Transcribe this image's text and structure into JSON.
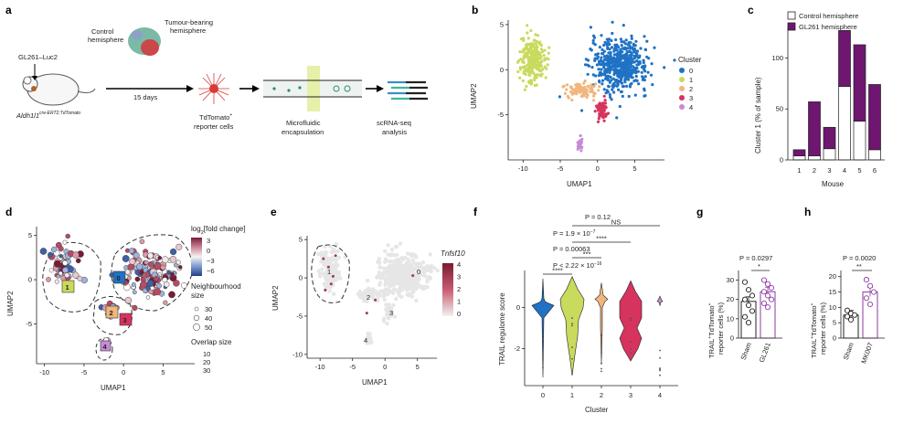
{
  "panel_letters": [
    "a",
    "b",
    "c",
    "d",
    "e",
    "f",
    "g",
    "h"
  ],
  "schematic": {
    "mouse_label": "GL261–Luc2",
    "control_label_1": "Control",
    "control_label_2": "hemisphere",
    "tumour_label_1": "Tumour-bearing",
    "tumour_label_2": "hemisphere",
    "duration": "15 days",
    "genotype": "Aldh1l1",
    "genotype_sup": "cre-ERT2;TdTomato",
    "step1_1": "TdTomato",
    "step1_sup": "+",
    "step1_2": "reporter cells",
    "step2_1": "Microfluidic",
    "step2_2": "encapsulation",
    "step3_1": "scRNA-seq",
    "step3_2": "analysis"
  },
  "chart_data": [
    {
      "panel": "b",
      "type": "scatter",
      "title": "",
      "xlabel": "UMAP1",
      "ylabel": "UMAP2",
      "xlim": [
        -12,
        9
      ],
      "ylim": [
        -10,
        5.5
      ],
      "xticks": [
        "-10",
        "-5",
        "0",
        "5"
      ],
      "yticks": [
        "5",
        "0",
        "-5"
      ],
      "legend_title": "Cluster",
      "series": [
        {
          "name": "0",
          "color": "#1f72c4",
          "center": [
            3,
            0.5
          ],
          "spread": [
            4.2,
            3.2
          ],
          "n": 520
        },
        {
          "name": "1",
          "color": "#c9da5c",
          "center": [
            -8.7,
            1.2
          ],
          "spread": [
            1.8,
            2.9
          ],
          "n": 240
        },
        {
          "name": "2",
          "color": "#f0b67c",
          "center": [
            -2.2,
            -2.3
          ],
          "spread": [
            2.4,
            0.9
          ],
          "n": 90
        },
        {
          "name": "3",
          "color": "#d7335f",
          "center": [
            0.6,
            -4.5
          ],
          "spread": [
            0.9,
            1.2
          ],
          "n": 60
        },
        {
          "name": "4",
          "color": "#c78bd6",
          "center": [
            -2.4,
            -8.3
          ],
          "spread": [
            0.4,
            0.8
          ],
          "n": 30
        }
      ]
    },
    {
      "panel": "c",
      "type": "bar",
      "title": "",
      "xlabel": "Mouse",
      "ylabel": "Cluster 1 (% of sample)",
      "categories": [
        "1",
        "2",
        "3",
        "4",
        "5",
        "6"
      ],
      "ylim": [
        0,
        130
      ],
      "yticks": [
        "0",
        "50",
        "100"
      ],
      "series": [
        {
          "name": "Control hemisphere",
          "color": "#ffffff",
          "values": [
            4,
            4,
            11,
            72,
            38,
            10
          ]
        },
        {
          "name": "GL261 hemisphere",
          "color": "#6e1670",
          "values": [
            6,
            53,
            21,
            55,
            75,
            64
          ]
        }
      ]
    },
    {
      "panel": "d",
      "type": "scatter",
      "title": "",
      "xlabel": "UMAP1",
      "ylabel": "UMAP2",
      "xlim": [
        -11,
        9
      ],
      "ylim": [
        -9.5,
        6
      ],
      "xticks": [
        "-10",
        "-5",
        "0",
        "5"
      ],
      "yticks": [
        "5",
        "0",
        "-5"
      ],
      "color_legend_title": "log",
      "color_legend_sub": "2",
      "color_legend_rest": "[fold change]",
      "color_ticks": [
        "3",
        "0",
        "−3",
        "−6"
      ],
      "size_title_1": "Neighbourhood",
      "size_title_2": "size",
      "size_values": [
        "30",
        "40",
        "50"
      ],
      "overlap_title": "Overlap size",
      "overlap_values": [
        "10",
        "20",
        "30"
      ],
      "cluster_labels": [
        "0",
        "1",
        "2",
        "3",
        "4"
      ]
    },
    {
      "panel": "e",
      "type": "scatter",
      "title": "",
      "xlabel": "UMAP1",
      "ylabel": "UMAP2",
      "xlim": [
        -12,
        8
      ],
      "ylim": [
        -10.5,
        5.5
      ],
      "xticks": [
        "-10",
        "-5",
        "0",
        "5"
      ],
      "yticks": [
        "5",
        "0",
        "-5",
        "-10"
      ],
      "gene": "Tnfsf10",
      "color_ticks": [
        "4",
        "3",
        "2",
        "1",
        "0"
      ],
      "cluster_labels": [
        "1",
        "0",
        "2",
        "3",
        "4"
      ]
    },
    {
      "panel": "f",
      "type": "violin",
      "title": "",
      "xlabel": "Cluster",
      "ylabel": "TRAIL regulome score",
      "categories": [
        "0",
        "1",
        "2",
        "3",
        "4"
      ],
      "ylim": [
        -3.8,
        1.8
      ],
      "yticks": [
        "0",
        "-2"
      ],
      "colors": [
        "#1f72c4",
        "#c9da5c",
        "#f0b67c",
        "#d7335f",
        "#c78bd6"
      ],
      "comparisons": [
        {
          "label": "P = 0.12",
          "sig": "NS",
          "from": "1",
          "to": "4"
        },
        {
          "label": "P = 1.9 × 10",
          "exp": "−7",
          "sig": "****",
          "from": "1",
          "to": "3"
        },
        {
          "label": "P = 0.00063",
          "sig": "***",
          "from": "1",
          "to": "2"
        },
        {
          "label": "P < 2.22 × 10",
          "exp": "−16",
          "sig": "****",
          "from": "0",
          "to": "1"
        }
      ]
    },
    {
      "panel": "g",
      "type": "bar",
      "title": "",
      "xlabel": "",
      "ylabel_1": "TRAIL",
      "ylabel_sup1": "+",
      "ylabel_2": "TdTomato",
      "ylabel_sup2": "+",
      "ylabel_3": "reporter cells (%)",
      "categories": [
        "Sham",
        "GL261"
      ],
      "values": [
        19,
        24
      ],
      "ylim": [
        0,
        35
      ],
      "yticks": [
        "0",
        "10",
        "20",
        "30"
      ],
      "p_value": "P = 0.0297",
      "sig": "*",
      "points": [
        [
          29,
          25,
          22,
          20,
          17,
          14,
          11,
          8
        ],
        [
          30,
          28,
          26,
          24,
          22,
          20,
          18,
          16
        ]
      ]
    },
    {
      "panel": "h",
      "type": "bar",
      "title": "",
      "xlabel": "",
      "ylabel_1": "TRAIL",
      "ylabel_sup1": "+",
      "ylabel_2": "TdTomato",
      "ylabel_sup2": "+",
      "ylabel_3": "reporter cells (%)",
      "categories": [
        "Sham",
        "MK007"
      ],
      "values": [
        7.5,
        15
      ],
      "ylim": [
        0,
        22
      ],
      "yticks": [
        "0",
        "5",
        "10",
        "15",
        "20"
      ],
      "p_value": "P = 0.0020",
      "sig": "**",
      "points": [
        [
          9,
          8,
          7.5,
          7,
          6
        ],
        [
          19,
          17,
          15,
          13,
          11
        ]
      ]
    }
  ]
}
